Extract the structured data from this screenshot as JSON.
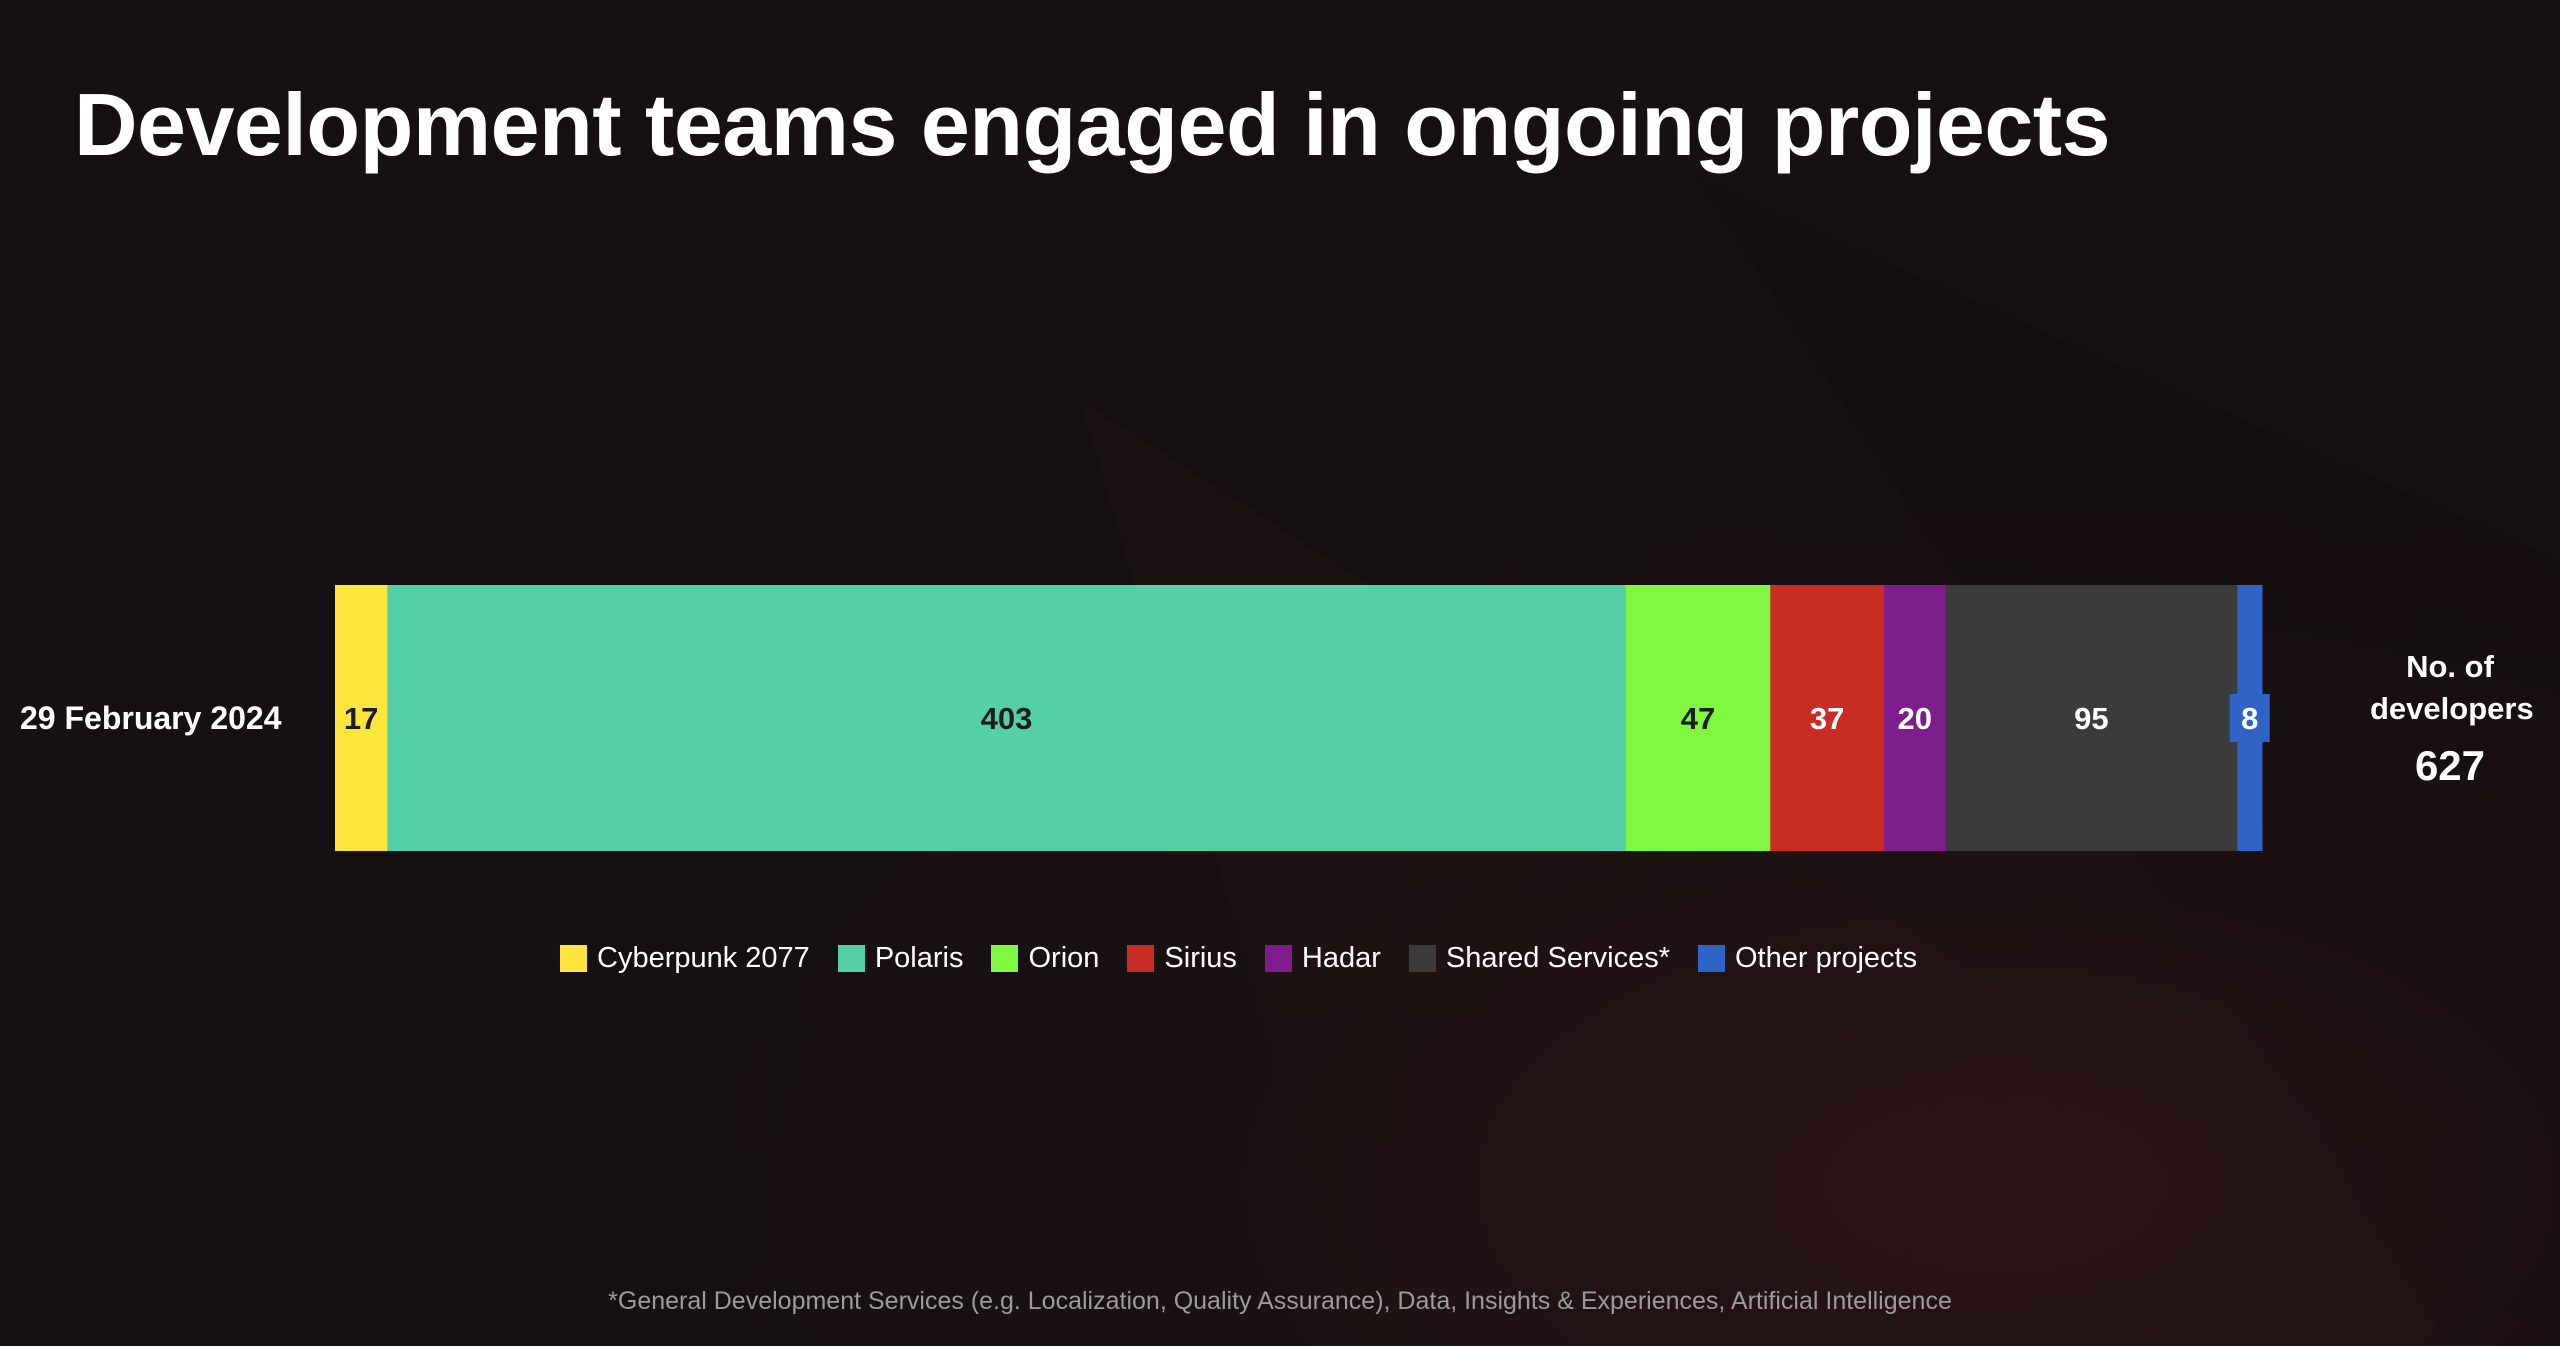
{
  "title": "Development teams engaged in ongoing projects",
  "footnote": "*General Development Services (e.g. Localization, Quality Assurance), Data, Insights & Experiences, Artificial Intelligence",
  "chart_data": {
    "type": "bar",
    "orientation": "horizontal",
    "stacked": true,
    "categories": [
      "29 February 2024"
    ],
    "series": [
      {
        "name": "Cyberpunk 2077",
        "values": [
          17
        ],
        "color": "#fde53d",
        "label_color": "#1c1c1c"
      },
      {
        "name": "Polaris",
        "values": [
          403
        ],
        "color": "#55d0a6",
        "label_color": "#1c1c1c"
      },
      {
        "name": "Orion",
        "values": [
          47
        ],
        "color": "#80f83f",
        "label_color": "#1c1c1c"
      },
      {
        "name": "Sirius",
        "values": [
          37
        ],
        "color": "#c92c22",
        "label_color": "#ffffff"
      },
      {
        "name": "Hadar",
        "values": [
          20
        ],
        "color": "#7e1e8c",
        "label_color": "#ffffff"
      },
      {
        "name": "Shared Services*",
        "values": [
          95
        ],
        "color": "#3b3b3b",
        "label_color": "#ffffff"
      },
      {
        "name": "Other projects",
        "values": [
          8
        ],
        "color": "#2f64c6",
        "label_color": "#ffffff"
      }
    ],
    "total": {
      "label": "No. of developers",
      "value": 627
    },
    "legend_position": "bottom-center",
    "grid": false
  }
}
